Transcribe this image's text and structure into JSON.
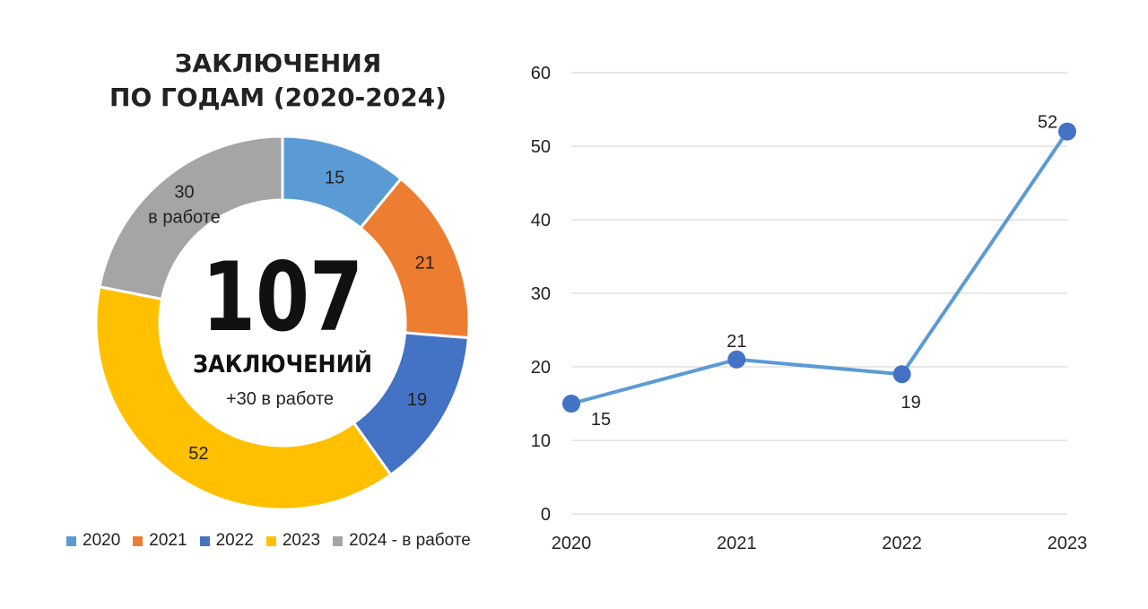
{
  "donut": {
    "title_line1": "ЗАКЛЮЧЕНИЯ",
    "title_line2": "ПО ГОДАМ (2020-2024)",
    "center_number": "107",
    "center_label": "ЗАКЛЮЧЕНИЙ",
    "center_sub": "+30 в работе"
  },
  "chart_data": [
    {
      "type": "pie",
      "title": "ЗАКЛЮЧЕНИЯ ПО ГОДАМ (2020-2024)",
      "categories": [
        "2020",
        "2021",
        "2022",
        "2023",
        "2024 - в работе"
      ],
      "values": [
        15,
        21,
        19,
        52,
        30
      ],
      "slice_labels": [
        "15",
        "21",
        "19",
        "52",
        "30"
      ],
      "slice_sublabels": [
        "",
        "",
        "",
        "",
        "в работе"
      ],
      "colors": [
        "#5b9bd5",
        "#ed7d31",
        "#4472c4",
        "#ffc000",
        "#a5a5a5"
      ],
      "legend_position": "bottom",
      "donut": true
    },
    {
      "type": "line",
      "x": [
        "2020",
        "2021",
        "2022",
        "2023"
      ],
      "values": [
        15,
        21,
        19,
        52
      ],
      "data_labels": [
        "15",
        "21",
        "19",
        "52"
      ],
      "ylim": [
        0,
        60
      ],
      "yticks": [
        "0",
        "10",
        "20",
        "30",
        "40",
        "50",
        "60"
      ],
      "grid": true,
      "colors": {
        "line": "#5b9bd5",
        "marker": "#4472c4",
        "grid": "#d9d9d9"
      }
    }
  ]
}
